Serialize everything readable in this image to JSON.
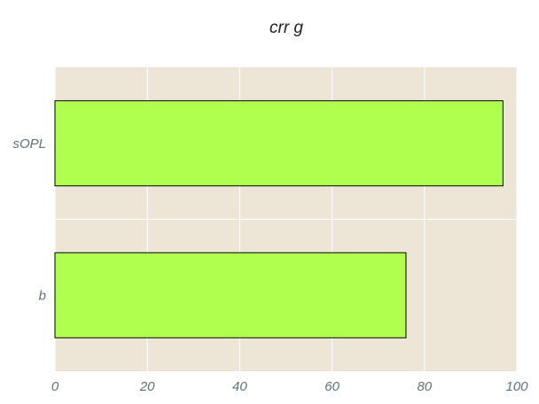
{
  "chart_data": {
    "type": "bar",
    "orientation": "horizontal",
    "title": "crr g",
    "categories": [
      "sOPL",
      "b"
    ],
    "values": [
      97,
      76
    ],
    "xlim": [
      0,
      100
    ],
    "xticks": [
      0,
      20,
      40,
      60,
      80,
      100
    ],
    "grid": true,
    "legend": false,
    "colors": {
      "bar": "#b0ff4f",
      "bar_edge": "#000000",
      "plot_background": "#ede6d6",
      "grid": "#ffffff",
      "tick_text": "#5f7282",
      "title_text": "#222222"
    }
  }
}
